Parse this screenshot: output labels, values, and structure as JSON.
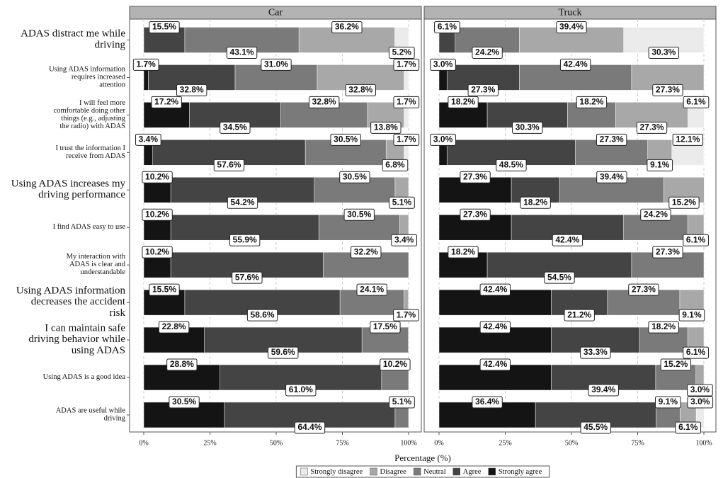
{
  "chart_data": {
    "type": "bar",
    "orientation": "horizontal",
    "stacked": true,
    "xlabel": "Percentage (%)",
    "xlim": [
      0,
      100
    ],
    "xticks": [
      {
        "value": 0,
        "label": "0%"
      },
      {
        "value": 25,
        "label": "25%"
      },
      {
        "value": 50,
        "label": "50%"
      },
      {
        "value": 75,
        "label": "75%"
      },
      {
        "value": 100,
        "label": "100%"
      }
    ],
    "grid": true,
    "legend": "bottom",
    "categories": [
      "ADAS distract me while\ndriving",
      "Using ADAS information\nrequires increased\nattention",
      "I will feel more\ncomfortable doing other\nthings (e.g., adjusting\nthe radio) with ADAS",
      "I trust the information I\nreceive from ADAS",
      "Using ADAS increases my\ndriving performance",
      "I find ADAS easy to use",
      "My interaction with\nADAS is clear and\nunderstandable",
      "Using ADAS information\ndecreases the accident\nrisk",
      "I can maintain safe\ndriving behavior while\nusing ADAS",
      "Using ADAS is a good idea",
      "ADAS are useful while\ndriving"
    ],
    "legend_names": [
      "Strongly disagree",
      "Disagree",
      "Neutral",
      "Agree",
      "Strongly agree"
    ],
    "colors": [
      "#ebebeb",
      "#a8a8a8",
      "#7a7a7a",
      "#444444",
      "#141414"
    ],
    "facets": [
      {
        "title": "Car",
        "series": [
          {
            "values": [
              5.2,
              1.7,
              1.7,
              1.7,
              null,
              null,
              null,
              null,
              null,
              null,
              null
            ],
            "value_labels": [
              "5.2%",
              "1.7%",
              "1.7%",
              "1.7%",
              null,
              null,
              null,
              null,
              null,
              null,
              null
            ]
          },
          {
            "values": [
              36.2,
              32.8,
              13.8,
              6.8,
              5.1,
              3.4,
              null,
              1.7,
              null,
              null,
              null
            ],
            "value_labels": [
              "36.2%",
              "32.8%",
              "13.8%",
              "6.8%",
              "5.1%",
              "3.4%",
              null,
              "1.7%",
              null,
              null,
              null
            ]
          },
          {
            "values": [
              43.1,
              31.0,
              32.8,
              30.5,
              30.5,
              30.5,
              32.2,
              24.1,
              17.5,
              10.2,
              5.1
            ],
            "value_labels": [
              "43.1%",
              "31.0%",
              "32.8%",
              "30.5%",
              "30.5%",
              "30.5%",
              "32.2%",
              "24.1%",
              "17.5%",
              "10.2%",
              "5.1%"
            ]
          },
          {
            "values": [
              15.5,
              32.8,
              34.5,
              57.6,
              54.2,
              55.9,
              57.6,
              58.6,
              59.6,
              61.0,
              64.4
            ],
            "value_labels": [
              "15.5%",
              "32.8%",
              "34.5%",
              "57.6%",
              "54.2%",
              "55.9%",
              "57.6%",
              "58.6%",
              "59.6%",
              "61.0%",
              "64.4%"
            ]
          },
          {
            "values": [
              null,
              1.7,
              17.2,
              3.4,
              10.2,
              10.2,
              10.2,
              15.5,
              22.8,
              28.8,
              30.5
            ],
            "value_labels": [
              null,
              "1.7%",
              "17.2%",
              "3.4%",
              "10.2%",
              "10.2%",
              "10.2%",
              "15.5%",
              "22.8%",
              "28.8%",
              "30.5%"
            ]
          }
        ]
      },
      {
        "title": "Truck",
        "series": [
          {
            "values": [
              30.3,
              null,
              6.1,
              12.1,
              null,
              null,
              null,
              null,
              null,
              null,
              3.0
            ],
            "value_labels": [
              "30.3%",
              null,
              "6.1%",
              "12.1%",
              null,
              null,
              null,
              null,
              null,
              null,
              "3.0%"
            ]
          },
          {
            "values": [
              39.4,
              27.3,
              27.3,
              9.1,
              15.2,
              6.1,
              null,
              9.1,
              6.1,
              3.0,
              6.1
            ],
            "value_labels": [
              "39.4%",
              "27.3%",
              "27.3%",
              "9.1%",
              "15.2%",
              "6.1%",
              null,
              "9.1%",
              "6.1%",
              "3.0%",
              "6.1%"
            ]
          },
          {
            "values": [
              24.2,
              42.4,
              18.2,
              27.3,
              39.4,
              24.2,
              27.3,
              27.3,
              18.2,
              15.2,
              9.1
            ],
            "value_labels": [
              "24.2%",
              "42.4%",
              "18.2%",
              "27.3%",
              "39.4%",
              "24.2%",
              "27.3%",
              "27.3%",
              "18.2%",
              "15.2%",
              "9.1%"
            ]
          },
          {
            "values": [
              6.1,
              27.3,
              30.3,
              48.5,
              18.2,
              42.4,
              54.5,
              21.2,
              33.3,
              39.4,
              45.5
            ],
            "value_labels": [
              "6.1%",
              "27.3%",
              "30.3%",
              "48.5%",
              "18.2%",
              "42.4%",
              "54.5%",
              "21.2%",
              "33.3%",
              "39.4%",
              "45.5%"
            ]
          },
          {
            "values": [
              null,
              3.0,
              18.2,
              3.0,
              27.3,
              27.3,
              18.2,
              42.4,
              42.4,
              42.4,
              36.4
            ],
            "value_labels": [
              null,
              "3.0%",
              "18.2%",
              "3.0%",
              "27.3%",
              "27.3%",
              "18.2%",
              "42.4%",
              "42.4%",
              "42.4%",
              "36.4%"
            ]
          }
        ]
      }
    ]
  }
}
